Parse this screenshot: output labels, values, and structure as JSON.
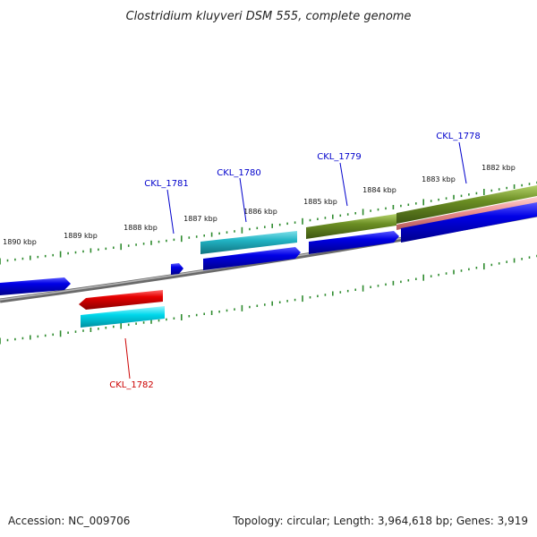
{
  "title": "Clostridium kluyveri DSM 555, complete genome",
  "footer": {
    "accession": "Accession: NC_009706",
    "summary": "Topology: circular; Length: 3,964,618 bp; Genes: 3,919"
  },
  "colors": {
    "forward_gene": "#0000e6",
    "reverse_gene": "#e60000",
    "cyan_feature": "#00d2e6",
    "olive_feature": "#6b8e23",
    "pink_feature": "#e88a8a",
    "tick": "#2e8b2e",
    "backbone": "#8a8a8a",
    "label_forward": "#0000cc",
    "label_reverse": "#cc0000"
  },
  "kbp_labels": [
    "1890 kbp",
    "1889 kbp",
    "1888 kbp",
    "1887 kbp",
    "1886 kbp",
    "1885 kbp",
    "1884 kbp",
    "1883 kbp",
    "1882 kbp"
  ],
  "gene_labels": {
    "ckl_1778": "CKL_1778",
    "ckl_1779": "CKL_1779",
    "ckl_1780": "CKL_1780",
    "ckl_1781": "CKL_1781",
    "ckl_1782": "CKL_1782"
  }
}
